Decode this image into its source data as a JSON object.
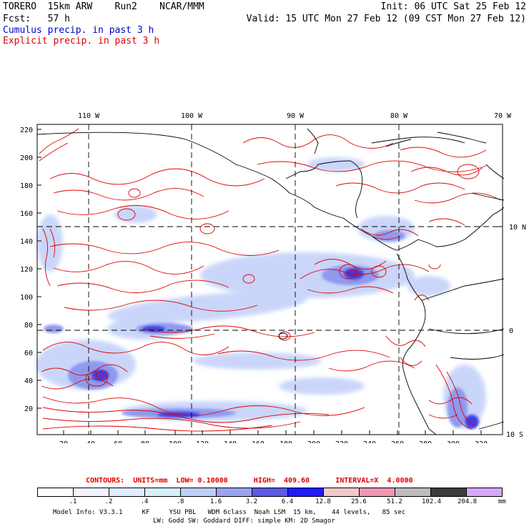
{
  "header": {
    "model": "TORERO  15km ARW    Run2    NCAR/MMM",
    "init": "Init: 06 UTC Sat 25 Feb 12",
    "fcst": "Fcst:   57 h",
    "valid": "Valid: 15 UTC Mon 27 Feb 12 (09 CST Mon 27 Feb 12)",
    "legend_cumulus": "Cumulus precip. in past 3 h",
    "legend_explicit": "Explicit precip. in past 3 h"
  },
  "colors": {
    "cumulus": "#0000cc",
    "explicit": "#e00000",
    "coast": "#000000",
    "grid": "#000000"
  },
  "map": {
    "lon_labels": [
      "110 W",
      "100 W",
      "90 W",
      "80 W",
      "70 W"
    ],
    "lat_labels": [
      "10 N",
      "0",
      "10 S"
    ],
    "y_ticks": [
      "220",
      "200",
      "180",
      "160",
      "140",
      "120",
      "100",
      "80",
      "60",
      "40",
      "20"
    ],
    "x_ticks": [
      "20",
      "40",
      "60",
      "80",
      "100",
      "120",
      "140",
      "160",
      "180",
      "200",
      "220",
      "240",
      "260",
      "280",
      "300",
      "320"
    ]
  },
  "contour_info": {
    "label": "CONTOURS:  UNITS=mm  LOW= 0.10000      HIGH=  409.60      INTERVAL=X  4.0000"
  },
  "colorbar": {
    "levels": [
      ".1",
      ".2",
      ".4",
      ".8",
      "1.6",
      "3.2",
      "6.4",
      "12.8",
      "25.6",
      "51.2",
      "102.4",
      "204.8"
    ],
    "unit": "mm",
    "colors": [
      "#ffffff",
      "#f0f4ff",
      "#e0ecff",
      "#d6f0f8",
      "#bccef8",
      "#9aa4ee",
      "#5a5ae6",
      "#1c1cff",
      "#f2c8c8",
      "#ee96b4",
      "#bcbcbc",
      "#3c3c3c",
      "#d8a8f8"
    ]
  },
  "footer": {
    "line1": "Model Info: V3.3.1     KF     YSU PBL   WDM 6class  Noah LSM  15 km,    44 levels,   85 sec",
    "line2": "LW: Godd SW: Goddard DIFF: simple KM: 2D Smagor"
  }
}
